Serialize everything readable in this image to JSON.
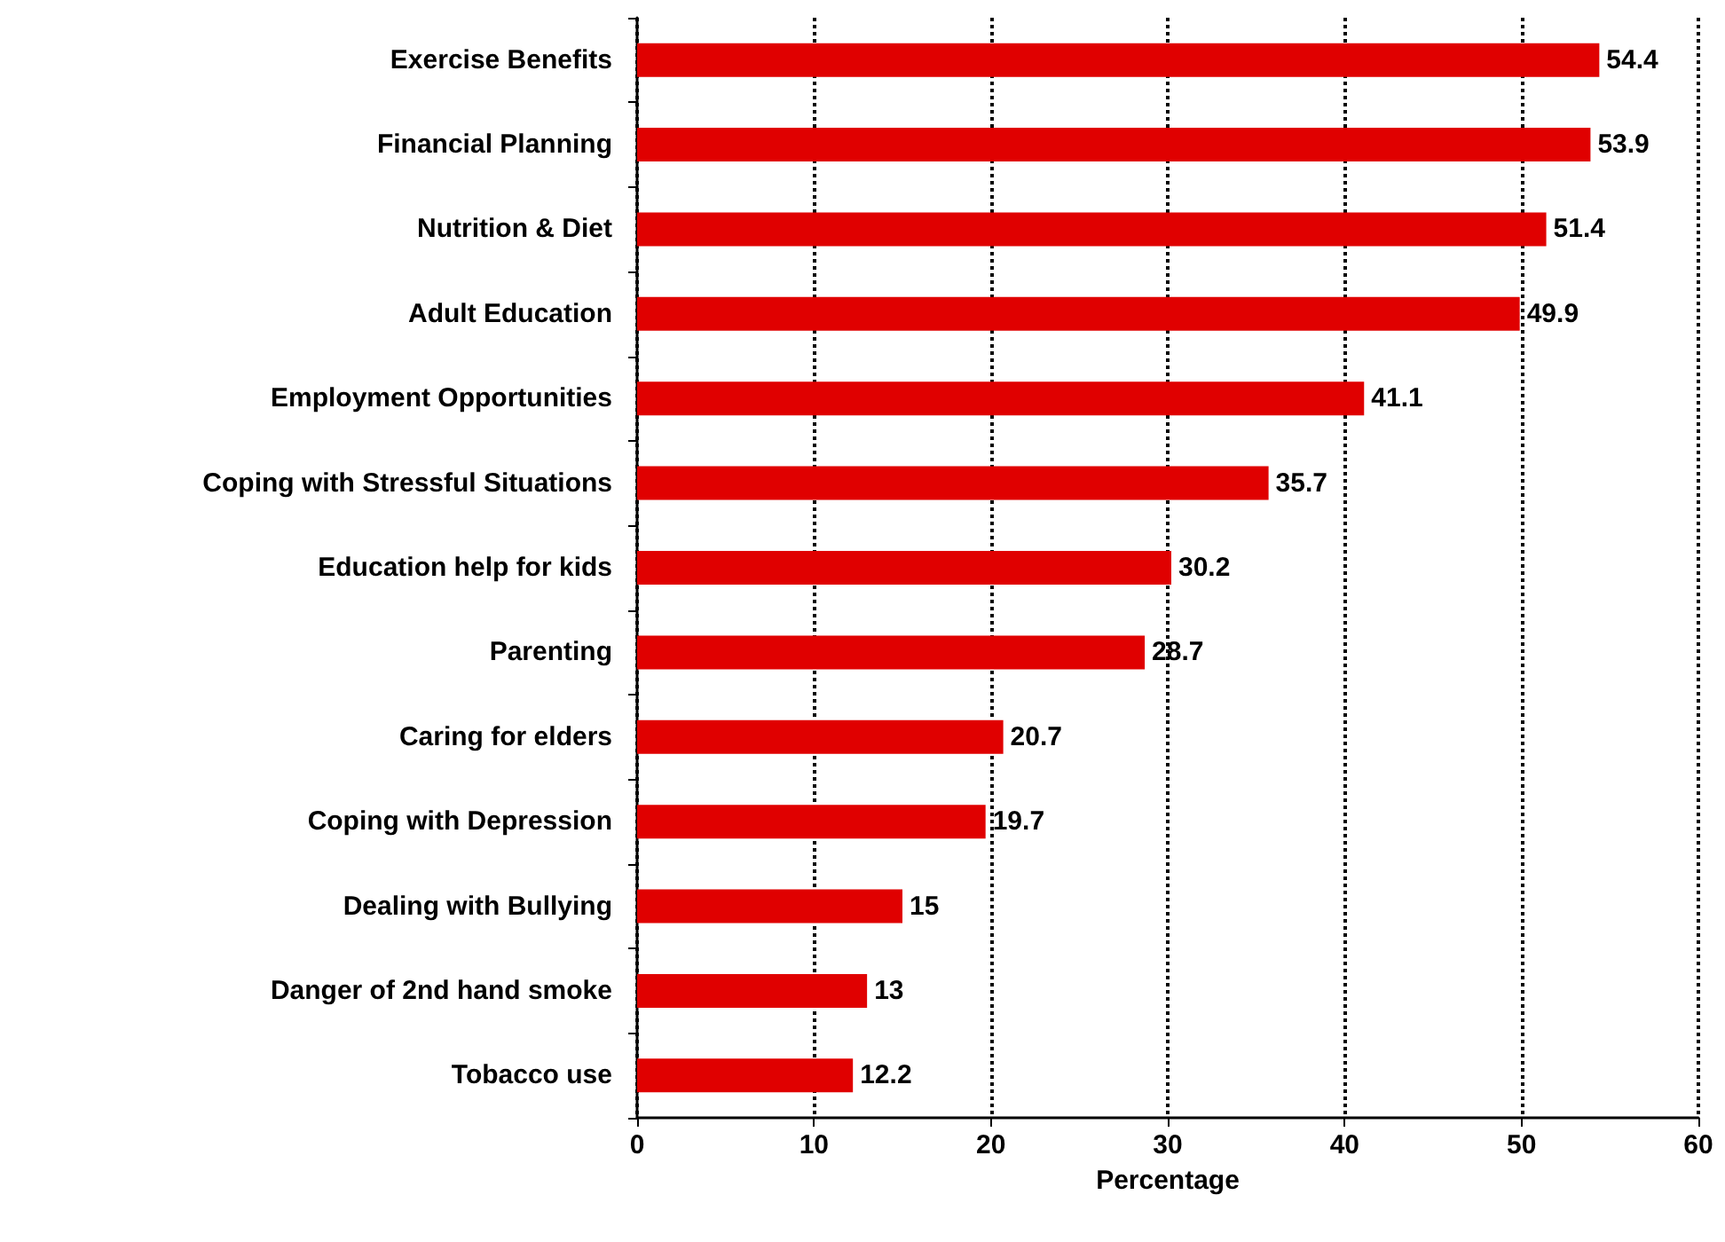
{
  "chart_data": {
    "type": "bar",
    "orientation": "horizontal",
    "xlabel": "Percentage",
    "categories": [
      "Exercise Benefits",
      "Financial Planning",
      "Nutrition & Diet",
      "Adult Education",
      "Employment Opportunities",
      "Coping with Stressful Situations",
      "Education help for kids",
      "Parenting",
      "Caring for elders",
      "Coping with Depression",
      "Dealing with Bullying",
      "Danger of 2nd hand smoke",
      "Tobacco use"
    ],
    "values": [
      54.4,
      53.9,
      51.4,
      49.9,
      41.1,
      35.7,
      30.2,
      28.7,
      20.7,
      19.7,
      15,
      13,
      12.2
    ],
    "color": "#e00000",
    "xlim": [
      0,
      60
    ],
    "xticks": [
      0,
      10,
      20,
      30,
      40,
      50,
      60
    ],
    "grid": "x",
    "data_labels": true
  }
}
